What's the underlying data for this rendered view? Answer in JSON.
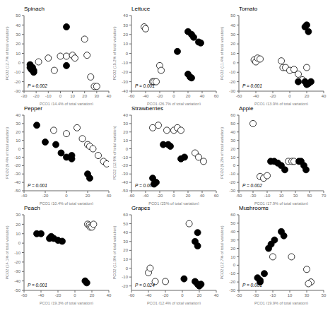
{
  "chart_data": [
    {
      "type": "scatter",
      "title": "Spinach",
      "xlabel": "PCO1 (14.4% of total variation)",
      "ylabel": "PCO2 (12.7% of total variation)",
      "annotation": "P = 0.002",
      "xlim": [
        -30,
        40
      ],
      "ylim": [
        -30,
        50
      ],
      "xticks": [
        -30,
        -20,
        -10,
        0,
        10,
        20,
        30,
        40
      ],
      "yticks": [
        -30,
        -20,
        -10,
        0,
        10,
        20,
        30,
        40,
        50
      ],
      "grid": false,
      "series": [
        {
          "marker": "open",
          "color": "black",
          "x": [
            -18,
            -10,
            -5,
            0,
            5,
            10,
            12,
            20,
            22,
            25,
            28,
            30
          ],
          "y": [
            1,
            5,
            -8,
            7,
            7,
            8,
            5,
            25,
            8,
            -15,
            -25,
            -25
          ]
        },
        {
          "marker": "filled",
          "color": "black",
          "x": [
            -25,
            -25,
            -24,
            -23,
            -22,
            -22,
            5,
            5
          ],
          "y": [
            -2,
            -5,
            -7,
            -5,
            -8,
            -10,
            -3,
            38
          ]
        }
      ]
    },
    {
      "type": "scatter",
      "title": "Lettuce",
      "xlabel": "PCO1 (26.7% of total variation)",
      "ylabel": "PCO2 (15.2% of total variation)",
      "annotation": "P = 0.001",
      "xlim": [
        -60,
        60
      ],
      "ylim": [
        -40,
        40
      ],
      "xticks": [
        -60,
        -40,
        -20,
        0,
        20,
        40,
        60
      ],
      "yticks": [
        -40,
        -30,
        -20,
        -10,
        0,
        10,
        20,
        30,
        40
      ],
      "grid": false,
      "series": [
        {
          "marker": "open",
          "color": "black",
          "x": [
            -42,
            -40,
            -20,
            -18,
            -30,
            -28,
            -25
          ],
          "y": [
            28,
            26,
            -13,
            -18,
            -30,
            -30,
            -30
          ]
        },
        {
          "marker": "filled",
          "color": "black",
          "x": [
            20,
            25,
            28,
            35,
            38,
            20,
            23,
            25,
            5
          ],
          "y": [
            23,
            20,
            17,
            12,
            11,
            -22,
            -25,
            -26,
            2
          ]
        }
      ]
    },
    {
      "type": "scatter",
      "title": "Tomato",
      "xlabel": "PCO1 (13.9% of total variation)",
      "ylabel": "PCO2 (11.4% of total variation)",
      "annotation": "P = 0.001",
      "xlim": [
        -60,
        40
      ],
      "ylim": [
        -30,
        50
      ],
      "xticks": [
        -60,
        -40,
        -20,
        0,
        20,
        40
      ],
      "yticks": [
        -30,
        -20,
        -10,
        0,
        10,
        20,
        30,
        40,
        50
      ],
      "grid": false,
      "series": [
        {
          "marker": "open",
          "color": "black",
          "x": [
            -42,
            -40,
            -38,
            -35,
            -10,
            -8,
            -5,
            0,
            5,
            10,
            15,
            20
          ],
          "y": [
            3,
            1,
            5,
            4,
            2,
            -5,
            -5,
            -8,
            -7,
            -12,
            -18,
            -5
          ]
        },
        {
          "marker": "filled",
          "color": "black",
          "x": [
            18,
            20,
            22,
            18,
            20,
            22,
            25,
            10
          ],
          "y": [
            38,
            40,
            33,
            -20,
            -23,
            -22,
            -20,
            -20
          ]
        }
      ]
    },
    {
      "type": "scatter",
      "title": "Pepper",
      "xlabel": "PCO1 (10.4% of total variation)",
      "ylabel": "PCO2 (9.4% of total variation)",
      "annotation": "P = 0.001",
      "xlim": [
        -40,
        40
      ],
      "ylim": [
        -50,
        40
      ],
      "xticks": [
        -40,
        -20,
        0,
        20,
        40
      ],
      "yticks": [
        -50,
        -40,
        -30,
        -20,
        -10,
        0,
        10,
        20,
        30,
        40
      ],
      "grid": false,
      "series": [
        {
          "marker": "open",
          "color": "black",
          "x": [
            -12,
            0,
            10,
            15,
            20,
            22,
            25,
            30,
            35,
            38
          ],
          "y": [
            22,
            18,
            25,
            12,
            5,
            3,
            0,
            -8,
            -15,
            -18
          ]
        },
        {
          "marker": "filled",
          "color": "black",
          "x": [
            -28,
            -20,
            -10,
            -5,
            0,
            5,
            5,
            20,
            22
          ],
          "y": [
            28,
            8,
            5,
            -5,
            -10,
            -8,
            -12,
            -30,
            -35
          ]
        }
      ]
    },
    {
      "type": "scatter",
      "title": "Strawberries",
      "xlabel": "PCO1 (25% of total variation)",
      "ylabel": "PCO2 (12.9% of total variation)",
      "annotation": "P = 0.003",
      "xlim": [
        -60,
        60
      ],
      "ylim": [
        -50,
        40
      ],
      "xticks": [
        -60,
        -40,
        -20,
        0,
        20,
        40,
        60
      ],
      "yticks": [
        -50,
        -40,
        -30,
        -20,
        -10,
        0,
        10,
        20,
        30,
        40
      ],
      "grid": false,
      "series": [
        {
          "marker": "open",
          "color": "black",
          "x": [
            -30,
            -22,
            -10,
            0,
            5,
            10,
            30,
            35,
            42
          ],
          "y": [
            25,
            28,
            22,
            22,
            25,
            22,
            -5,
            -10,
            -15
          ]
        },
        {
          "marker": "filled",
          "color": "black",
          "x": [
            -15,
            -8,
            -5,
            -30,
            -25,
            -28,
            10,
            15
          ],
          "y": [
            5,
            5,
            3,
            -35,
            -40,
            -42,
            -12,
            -10
          ]
        }
      ]
    },
    {
      "type": "scatter",
      "title": "Apple",
      "xlabel": "PCO1 (17.9% of total variation)",
      "ylabel": "PCO2 (9.2% of total variation)",
      "annotation": "P = 0.002",
      "xlim": [
        -50,
        70
      ],
      "ylim": [
        -30,
        60
      ],
      "xticks": [
        -50,
        -30,
        -10,
        10,
        30,
        50,
        70
      ],
      "yticks": [
        -30,
        -20,
        -10,
        0,
        10,
        20,
        30,
        40,
        50,
        60
      ],
      "grid": false,
      "series": [
        {
          "marker": "open",
          "color": "black",
          "x": [
            -30,
            -20,
            -15,
            -10,
            20,
            25,
            28
          ],
          "y": [
            50,
            -13,
            -15,
            -12,
            5,
            5,
            5
          ]
        },
        {
          "marker": "filled",
          "color": "black",
          "x": [
            -5,
            0,
            5,
            10,
            15,
            35,
            38,
            42,
            45
          ],
          "y": [
            5,
            5,
            3,
            0,
            -5,
            5,
            5,
            0,
            -5
          ]
        }
      ]
    },
    {
      "type": "scatter",
      "title": "Peach",
      "xlabel": "PCO1 (19.3% of total variation)",
      "ylabel": "PCO2 (14.1% of total variation)",
      "annotation": "P = 0.001",
      "xlim": [
        -60,
        40
      ],
      "ylim": [
        -50,
        30
      ],
      "xticks": [
        -60,
        -40,
        -20,
        0,
        20,
        40
      ],
      "yticks": [
        -50,
        -40,
        -30,
        -20,
        -10,
        0,
        10,
        20,
        30
      ],
      "grid": false,
      "series": [
        {
          "marker": "open",
          "color": "black",
          "x": [
            15,
            17,
            18,
            20,
            22
          ],
          "y": [
            20,
            19,
            17,
            17,
            20
          ]
        },
        {
          "marker": "filled",
          "color": "black",
          "x": [
            -45,
            -40,
            -30,
            -28,
            -25,
            -20,
            -15,
            12,
            14
          ],
          "y": [
            10,
            10,
            5,
            7,
            5,
            3,
            2,
            -40,
            -42
          ]
        }
      ]
    },
    {
      "type": "scatter",
      "title": "Grapes",
      "xlabel": "PCO1 (12.4% of total variation)",
      "ylabel": "PCO2 (11.9% of total variation)",
      "annotation": "P = 0.024",
      "xlim": [
        -60,
        40
      ],
      "ylim": [
        -25,
        60
      ],
      "xticks": [
        -60,
        -40,
        -20,
        0,
        20,
        40
      ],
      "yticks": [
        -20,
        -10,
        0,
        10,
        20,
        30,
        40,
        50,
        60
      ],
      "grid": false,
      "series": [
        {
          "marker": "open",
          "color": "black",
          "x": [
            -40,
            -38,
            -32,
            -20,
            8
          ],
          "y": [
            -5,
            0,
            -15,
            -15,
            50
          ]
        },
        {
          "marker": "filled",
          "color": "black",
          "x": [
            15,
            18,
            18,
            15,
            18,
            20,
            22,
            2
          ],
          "y": [
            30,
            40,
            25,
            -15,
            -18,
            -20,
            -18,
            -12
          ]
        }
      ]
    },
    {
      "type": "scatter",
      "title": "Mushrooms",
      "xlabel": "PCO1 (19.9% of total variation)",
      "ylabel": "PCO2 (12.7% of total variation)",
      "annotation": "P = 0.001",
      "xlim": [
        -50,
        50
      ],
      "ylim": [
        -30,
        60
      ],
      "xticks": [
        -50,
        -30,
        -10,
        10,
        30,
        50
      ],
      "yticks": [
        -30,
        -20,
        -10,
        0,
        10,
        20,
        30,
        40,
        50,
        60
      ],
      "grid": false,
      "series": [
        {
          "marker": "open",
          "color": "black",
          "x": [
            -10,
            12,
            30,
            35,
            32
          ],
          "y": [
            10,
            10,
            -5,
            -20,
            -22
          ]
        },
        {
          "marker": "filled",
          "color": "black",
          "x": [
            -28,
            -25,
            -25,
            -20,
            -15,
            -12,
            -8,
            0,
            3
          ],
          "y": [
            -15,
            -20,
            -18,
            -10,
            20,
            25,
            30,
            40,
            35
          ]
        }
      ]
    }
  ]
}
